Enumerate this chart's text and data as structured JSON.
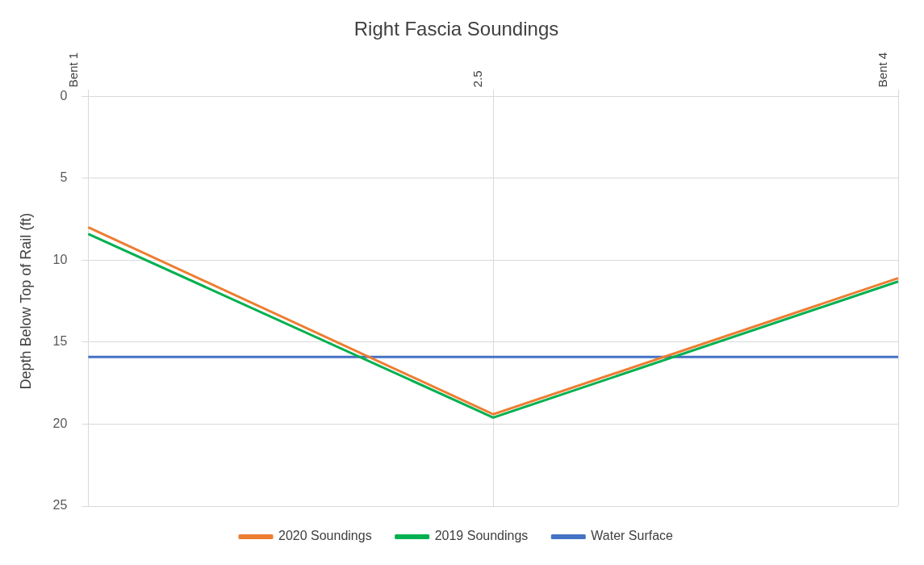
{
  "chart_data": {
    "type": "line",
    "title": "Right Fascia Soundings",
    "ylabel": "Depth Below Top of Rail (ft)",
    "categories": [
      "Bent 1",
      "2.5",
      "Bent 4"
    ],
    "series": [
      {
        "name": "2020 Soundings",
        "color": "#ed7d31",
        "values": [
          8.0,
          19.4,
          11.1
        ]
      },
      {
        "name": "2019 Soundings",
        "color": "#00b050",
        "values": [
          8.4,
          19.6,
          11.3
        ]
      },
      {
        "name": "Water Surface",
        "color": "#4472c4",
        "values": [
          15.9,
          15.9,
          15.9
        ]
      }
    ],
    "ylim": [
      25,
      0
    ],
    "yticks": [
      0,
      5,
      10,
      15,
      20,
      25
    ],
    "grid": true,
    "legend": "bottom",
    "marker": "none",
    "line_style": "solid"
  }
}
